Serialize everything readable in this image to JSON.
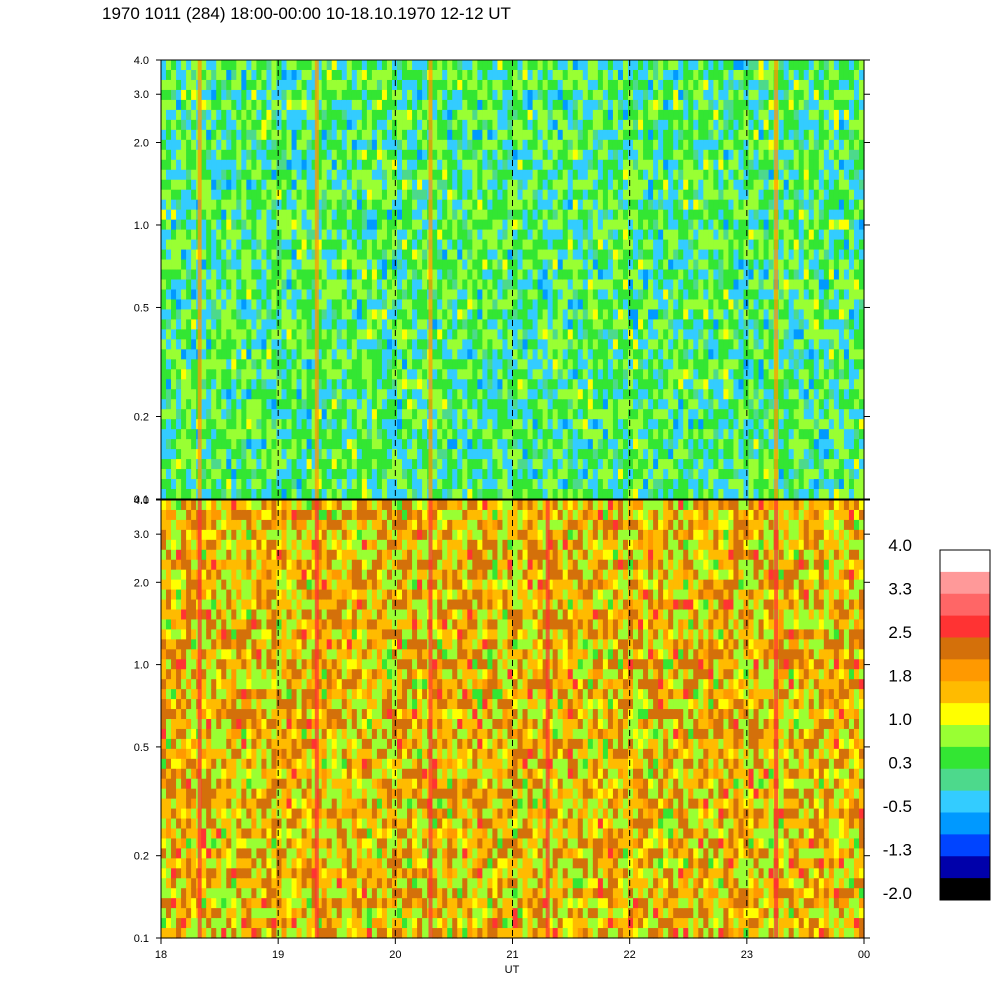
{
  "title": "1970 1011 (284) 18:00-00:00 10-18.10.1970  12-12 UT",
  "chart_data": {
    "type": "heatmap",
    "title": "1970 1011 (284) 18:00-00:00 10-18.10.1970  12-12 UT",
    "xlabel": "UT",
    "x_tick_labels": [
      "18",
      "19",
      "20",
      "21",
      "22",
      "23",
      "00"
    ],
    "x_range_hours": [
      18,
      24
    ],
    "y_scale": "log",
    "panels": [
      {
        "name": "upper",
        "ylim": [
          0.1,
          4.0
        ],
        "y_ticks": [
          0.1,
          0.2,
          0.5,
          1.0,
          2.0,
          3.0,
          4.0
        ],
        "y_tick_labels": [
          "0.1",
          "0.2",
          "0.5",
          "1.0",
          "2.0",
          "3.0",
          "4.0"
        ],
        "dominant_levels": [
          0.3,
          -0.5,
          1.0
        ],
        "events_hours": [
          18.33,
          19.33,
          20.3,
          23.25
        ]
      },
      {
        "name": "lower",
        "ylim": [
          0.1,
          4.0
        ],
        "y_ticks": [
          0.1,
          0.2,
          0.5,
          1.0,
          2.0,
          3.0,
          4.0
        ],
        "y_tick_labels": [
          "0.1",
          "0.2",
          "0.5",
          "1.0",
          "2.0",
          "3.0",
          "4.0"
        ],
        "dominant_levels": [
          1.8,
          1.0,
          2.5
        ],
        "events_hours": [
          18.33,
          19.33,
          20.3,
          21.3,
          23.25
        ]
      }
    ],
    "dashed_lines_hours": [
      19,
      20,
      21,
      22,
      23
    ],
    "colorbar": {
      "labels": [
        "4.0",
        "3.3",
        "2.5",
        "1.8",
        "1.0",
        "0.3",
        "-0.5",
        "-1.3",
        "-2.0"
      ],
      "colors": [
        "#ffffff",
        "#ff9999",
        "#ff6666",
        "#ff3333",
        "#d4700a",
        "#ff9900",
        "#ffbb00",
        "#ffff00",
        "#99ff33",
        "#33e633",
        "#4dd98c",
        "#33ccff",
        "#0099ff",
        "#0044ff",
        "#0000aa",
        "#000000"
      ]
    }
  }
}
